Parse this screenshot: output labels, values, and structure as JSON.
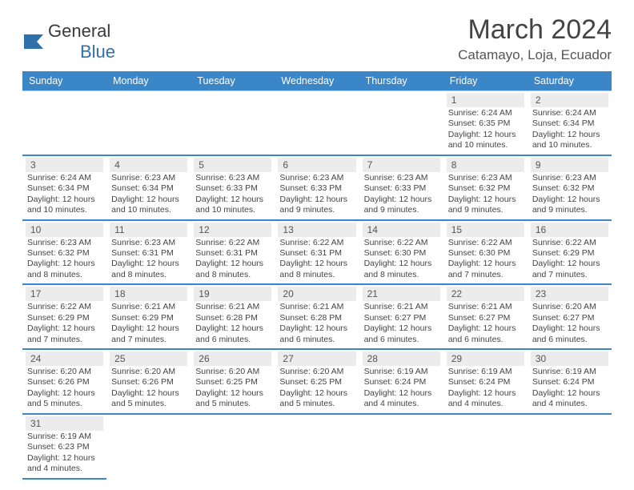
{
  "logo": {
    "line1": "General",
    "line2": "Blue"
  },
  "title": "March 2024",
  "location": "Catamayo, Loja, Ecuador",
  "colors": {
    "header_bg": "#3b86c6",
    "row_divider": "#3b86c6",
    "day_bg": "#ececec"
  },
  "cell_fontsize": 10.5,
  "weekdays": [
    "Sunday",
    "Monday",
    "Tuesday",
    "Wednesday",
    "Thursday",
    "Friday",
    "Saturday"
  ],
  "leading_blanks": 5,
  "trailing_blanks": 6,
  "days": [
    {
      "n": "1",
      "sr": "6:24 AM",
      "ss": "6:35 PM",
      "dl": "12 hours and 10 minutes."
    },
    {
      "n": "2",
      "sr": "6:24 AM",
      "ss": "6:34 PM",
      "dl": "12 hours and 10 minutes."
    },
    {
      "n": "3",
      "sr": "6:24 AM",
      "ss": "6:34 PM",
      "dl": "12 hours and 10 minutes."
    },
    {
      "n": "4",
      "sr": "6:23 AM",
      "ss": "6:34 PM",
      "dl": "12 hours and 10 minutes."
    },
    {
      "n": "5",
      "sr": "6:23 AM",
      "ss": "6:33 PM",
      "dl": "12 hours and 10 minutes."
    },
    {
      "n": "6",
      "sr": "6:23 AM",
      "ss": "6:33 PM",
      "dl": "12 hours and 9 minutes."
    },
    {
      "n": "7",
      "sr": "6:23 AM",
      "ss": "6:33 PM",
      "dl": "12 hours and 9 minutes."
    },
    {
      "n": "8",
      "sr": "6:23 AM",
      "ss": "6:32 PM",
      "dl": "12 hours and 9 minutes."
    },
    {
      "n": "9",
      "sr": "6:23 AM",
      "ss": "6:32 PM",
      "dl": "12 hours and 9 minutes."
    },
    {
      "n": "10",
      "sr": "6:23 AM",
      "ss": "6:32 PM",
      "dl": "12 hours and 8 minutes."
    },
    {
      "n": "11",
      "sr": "6:23 AM",
      "ss": "6:31 PM",
      "dl": "12 hours and 8 minutes."
    },
    {
      "n": "12",
      "sr": "6:22 AM",
      "ss": "6:31 PM",
      "dl": "12 hours and 8 minutes."
    },
    {
      "n": "13",
      "sr": "6:22 AM",
      "ss": "6:31 PM",
      "dl": "12 hours and 8 minutes."
    },
    {
      "n": "14",
      "sr": "6:22 AM",
      "ss": "6:30 PM",
      "dl": "12 hours and 8 minutes."
    },
    {
      "n": "15",
      "sr": "6:22 AM",
      "ss": "6:30 PM",
      "dl": "12 hours and 7 minutes."
    },
    {
      "n": "16",
      "sr": "6:22 AM",
      "ss": "6:29 PM",
      "dl": "12 hours and 7 minutes."
    },
    {
      "n": "17",
      "sr": "6:22 AM",
      "ss": "6:29 PM",
      "dl": "12 hours and 7 minutes."
    },
    {
      "n": "18",
      "sr": "6:21 AM",
      "ss": "6:29 PM",
      "dl": "12 hours and 7 minutes."
    },
    {
      "n": "19",
      "sr": "6:21 AM",
      "ss": "6:28 PM",
      "dl": "12 hours and 6 minutes."
    },
    {
      "n": "20",
      "sr": "6:21 AM",
      "ss": "6:28 PM",
      "dl": "12 hours and 6 minutes."
    },
    {
      "n": "21",
      "sr": "6:21 AM",
      "ss": "6:27 PM",
      "dl": "12 hours and 6 minutes."
    },
    {
      "n": "22",
      "sr": "6:21 AM",
      "ss": "6:27 PM",
      "dl": "12 hours and 6 minutes."
    },
    {
      "n": "23",
      "sr": "6:20 AM",
      "ss": "6:27 PM",
      "dl": "12 hours and 6 minutes."
    },
    {
      "n": "24",
      "sr": "6:20 AM",
      "ss": "6:26 PM",
      "dl": "12 hours and 5 minutes."
    },
    {
      "n": "25",
      "sr": "6:20 AM",
      "ss": "6:26 PM",
      "dl": "12 hours and 5 minutes."
    },
    {
      "n": "26",
      "sr": "6:20 AM",
      "ss": "6:25 PM",
      "dl": "12 hours and 5 minutes."
    },
    {
      "n": "27",
      "sr": "6:20 AM",
      "ss": "6:25 PM",
      "dl": "12 hours and 5 minutes."
    },
    {
      "n": "28",
      "sr": "6:19 AM",
      "ss": "6:24 PM",
      "dl": "12 hours and 4 minutes."
    },
    {
      "n": "29",
      "sr": "6:19 AM",
      "ss": "6:24 PM",
      "dl": "12 hours and 4 minutes."
    },
    {
      "n": "30",
      "sr": "6:19 AM",
      "ss": "6:24 PM",
      "dl": "12 hours and 4 minutes."
    },
    {
      "n": "31",
      "sr": "6:19 AM",
      "ss": "6:23 PM",
      "dl": "12 hours and 4 minutes."
    }
  ],
  "labels": {
    "sunrise": "Sunrise:",
    "sunset": "Sunset:",
    "daylight": "Daylight:"
  }
}
